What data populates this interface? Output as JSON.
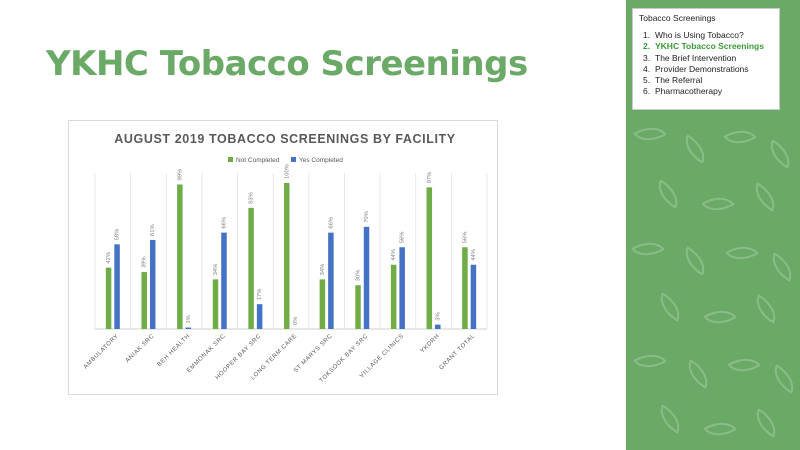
{
  "slide": {
    "title": "YKHC Tobacco Screenings"
  },
  "toc": {
    "heading": "Tobacco Screenings",
    "items": [
      {
        "number": "1.",
        "label": "Who is Using Tobacco?"
      },
      {
        "number": "2.",
        "label": "YKHC Tobacco Screenings",
        "active": true
      },
      {
        "number": "3.",
        "label": "The Brief Intervention"
      },
      {
        "number": "4.",
        "label": "Provider Demonstrations"
      },
      {
        "number": "5.",
        "label": "The Referral"
      },
      {
        "number": "6.",
        "label": "Pharmacotherapy"
      }
    ]
  },
  "colors": {
    "panel": "#6aaa66",
    "title": "#6aaa66",
    "active_item": "#3a9a3a",
    "not_completed": "#70ad47",
    "yes_completed": "#4472c4"
  },
  "chart_data": {
    "type": "bar",
    "title": "AUGUST 2019 TOBACCO SCREENINGS BY FACILITY",
    "legend": "top",
    "grid": "vertical",
    "ylim": [
      0,
      100
    ],
    "categories": [
      "AMBULATORY",
      "ANIAK SRC",
      "BEH HEALTH",
      "EMMONAK SRC",
      "HOOPER BAY SRC",
      "LONG TERM CARE",
      "ST MARYS SRC",
      "TOKSOOK BAY SRC",
      "VILLAGE CLINICS",
      "YKDRH",
      "GRANT TOTAL"
    ],
    "series": [
      {
        "name": "Not Completed",
        "color": "#70ad47",
        "values": [
          42,
          39,
          99,
          34,
          83,
          100,
          34,
          30,
          44,
          97,
          56
        ],
        "labels": [
          "42%",
          "39%",
          "99%",
          "34%",
          "83%",
          "100%",
          "34%",
          "30%",
          "44%",
          "97%",
          "56%"
        ]
      },
      {
        "name": "Yes Completed",
        "color": "#4472c4",
        "values": [
          58,
          61,
          1,
          66,
          17,
          0,
          66,
          70,
          56,
          3,
          44
        ],
        "labels": [
          "58%",
          "61%",
          "1%",
          "66%",
          "17%",
          "0%",
          "66%",
          "70%",
          "56%",
          "3%",
          "44%"
        ]
      }
    ]
  }
}
